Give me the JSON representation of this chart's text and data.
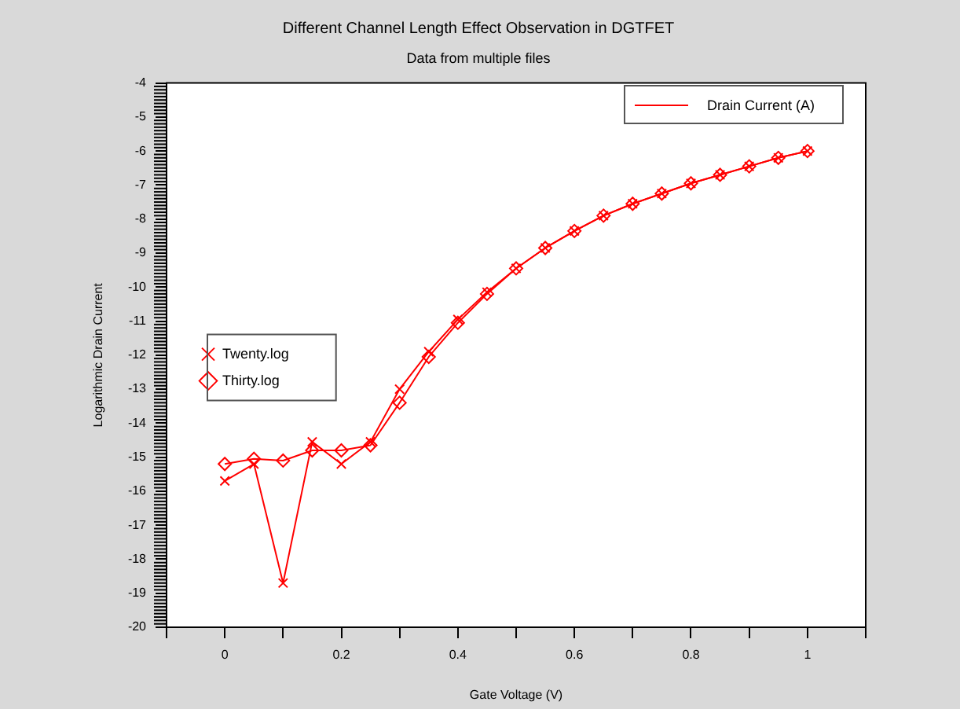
{
  "chart_data": {
    "type": "line",
    "title": "Different Channel Length Effect Observation in DGTFET",
    "subtitle": "Data from multiple files",
    "xlabel": "Gate Voltage (V)",
    "ylabel": "Logarithmic Drain Current",
    "x": [
      0,
      0.05,
      0.1,
      0.15,
      0.2,
      0.25,
      0.3,
      0.35,
      0.4,
      0.45,
      0.5,
      0.55,
      0.6,
      0.65,
      0.7,
      0.75,
      0.8,
      0.85,
      0.9,
      0.95,
      1
    ],
    "series": [
      {
        "name": "Twenty.log",
        "color": "#ff0000",
        "marker": "cross",
        "values": [
          -15.7,
          -15.2,
          -18.7,
          -14.55,
          -15.2,
          -14.55,
          -13.0,
          -11.9,
          -10.95,
          -10.15,
          -9.45,
          -8.85,
          -8.35,
          -7.9,
          -7.55,
          -7.25,
          -6.95,
          -6.7,
          -6.45,
          -6.2,
          -6.0
        ]
      },
      {
        "name": "Thirty.log",
        "color": "#ff0000",
        "marker": "diamond",
        "values": [
          -15.2,
          -15.05,
          -15.1,
          -14.8,
          -14.8,
          -14.65,
          -13.4,
          -12.05,
          -11.05,
          -10.2,
          -9.45,
          -8.85,
          -8.35,
          -7.9,
          -7.55,
          -7.25,
          -6.95,
          -6.7,
          -6.45,
          -6.2,
          -6.0
        ]
      }
    ],
    "xlim": [
      -0.1,
      1.1
    ],
    "xticks": [
      {
        "value": -0.1,
        "label": null
      },
      0,
      {
        "value": 0.1,
        "label": null
      },
      0.2,
      {
        "value": 0.3,
        "label": null
      },
      0.4,
      {
        "value": 0.5,
        "label": null
      },
      0.6,
      {
        "value": 0.7,
        "label": null
      },
      0.8,
      {
        "value": 0.9,
        "label": null
      },
      1,
      {
        "value": 1.1,
        "label": null
      }
    ],
    "ylim": [
      -20,
      -4
    ],
    "yticks": [
      -20,
      -19,
      -18,
      -17,
      -16,
      -15,
      -14,
      -13,
      -12,
      -11,
      -10,
      -9,
      -8,
      -7,
      -6,
      -5,
      -4
    ],
    "legend": "left",
    "grid": false,
    "line_style": "solid",
    "annotations": [
      "Drain Current (A)"
    ]
  }
}
